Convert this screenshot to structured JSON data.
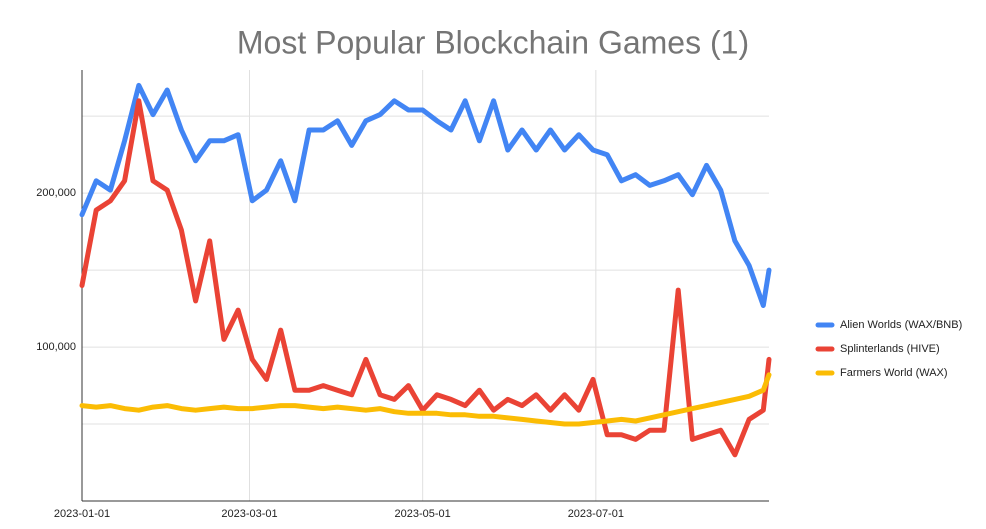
{
  "chart_data": {
    "type": "line",
    "title": "Most Popular Blockchain Games (1)",
    "x": [
      "2023-01-01",
      "2023-01-06",
      "2023-01-11",
      "2023-01-16",
      "2023-01-21",
      "2023-01-26",
      "2023-01-31",
      "2023-02-05",
      "2023-02-10",
      "2023-02-15",
      "2023-02-20",
      "2023-02-25",
      "2023-03-02",
      "2023-03-07",
      "2023-03-12",
      "2023-03-17",
      "2023-03-22",
      "2023-03-27",
      "2023-04-01",
      "2023-04-06",
      "2023-04-11",
      "2023-04-16",
      "2023-04-21",
      "2023-04-26",
      "2023-05-01",
      "2023-05-06",
      "2023-05-11",
      "2023-05-16",
      "2023-05-21",
      "2023-05-26",
      "2023-05-31",
      "2023-06-05",
      "2023-06-10",
      "2023-06-15",
      "2023-06-20",
      "2023-06-25",
      "2023-06-30",
      "2023-07-05",
      "2023-07-10",
      "2023-07-15",
      "2023-07-20",
      "2023-07-25",
      "2023-07-30",
      "2023-08-04",
      "2023-08-09",
      "2023-08-14",
      "2023-08-19",
      "2023-08-24",
      "2023-08-29",
      "2023-08-31"
    ],
    "xlim": [
      "2023-01-01",
      "2023-08-31"
    ],
    "xticks": [
      "2023-01-01",
      "2023-03-01",
      "2023-05-01",
      "2023-07-01"
    ],
    "ylim": [
      0,
      280000
    ],
    "yticks": [
      {
        "value": 100000,
        "label": "100,000"
      },
      {
        "value": 200000,
        "label": "200,000"
      }
    ],
    "minor_grid": [
      50000,
      150000,
      250000
    ],
    "legend": "right",
    "series": [
      {
        "name": "Alien Worlds (WAX/BNB)",
        "color": "#4285f4",
        "values": [
          186000,
          208000,
          202000,
          234000,
          270000,
          251000,
          267000,
          241000,
          221000,
          234000,
          234000,
          238000,
          195000,
          202000,
          221000,
          195000,
          241000,
          241000,
          247000,
          231000,
          247000,
          251000,
          260000,
          254000,
          254000,
          247000,
          241000,
          260000,
          234000,
          260000,
          228000,
          241000,
          228000,
          241000,
          228000,
          238000,
          228000,
          225000,
          208000,
          212000,
          205000,
          208000,
          212000,
          199000,
          218000,
          202000,
          169000,
          153000,
          127000,
          150000
        ]
      },
      {
        "name": "Splinterlands (HIVE)",
        "color": "#ea4335",
        "values": [
          140000,
          189000,
          195000,
          208000,
          260000,
          208000,
          202000,
          176000,
          130000,
          169000,
          105000,
          124000,
          92000,
          79000,
          111000,
          72000,
          72000,
          75000,
          72000,
          69000,
          92000,
          69000,
          66000,
          75000,
          59000,
          69000,
          66000,
          62000,
          72000,
          59000,
          66000,
          62000,
          69000,
          59000,
          69000,
          59000,
          79000,
          43000,
          43000,
          40000,
          46000,
          46000,
          137000,
          40000,
          43000,
          46000,
          30000,
          53000,
          59000,
          92000
        ]
      },
      {
        "name": "Farmers World (WAX)",
        "color": "#fbbc04",
        "values": [
          62000,
          61000,
          62000,
          60000,
          59000,
          61000,
          62000,
          60000,
          59000,
          60000,
          61000,
          60000,
          60000,
          61000,
          62000,
          62000,
          61000,
          60000,
          61000,
          60000,
          59000,
          60000,
          58000,
          57000,
          57000,
          57000,
          56000,
          56000,
          55000,
          55000,
          54000,
          53000,
          52000,
          51000,
          50000,
          50000,
          51000,
          52000,
          53000,
          52000,
          54000,
          56000,
          58000,
          60000,
          62000,
          64000,
          66000,
          68000,
          72000,
          82000
        ]
      }
    ]
  }
}
